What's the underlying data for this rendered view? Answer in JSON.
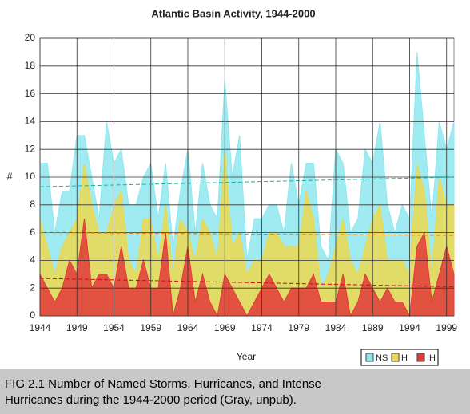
{
  "chart_data": {
    "type": "area",
    "title": "Atlantic Basin Activity, 1944-2000",
    "xlabel": "Year",
    "ylabel": "#",
    "x": [
      1944,
      1945,
      1946,
      1947,
      1948,
      1949,
      1950,
      1951,
      1952,
      1953,
      1954,
      1955,
      1956,
      1957,
      1958,
      1959,
      1960,
      1961,
      1962,
      1963,
      1964,
      1965,
      1966,
      1967,
      1968,
      1969,
      1970,
      1971,
      1972,
      1973,
      1974,
      1975,
      1976,
      1977,
      1978,
      1979,
      1980,
      1981,
      1982,
      1983,
      1984,
      1985,
      1986,
      1987,
      1988,
      1989,
      1990,
      1991,
      1992,
      1993,
      1994,
      1995,
      1996,
      1997,
      1998,
      1999,
      2000
    ],
    "series": [
      {
        "name": "NS",
        "color": "#8ee8ee",
        "trend_color": "#2aa89a",
        "trend": [
          9.3,
          10.0
        ],
        "values": [
          11,
          11,
          6,
          9,
          9,
          13,
          13,
          10,
          7,
          14,
          11,
          12,
          8,
          8,
          10,
          11,
          7,
          11,
          5,
          9,
          12,
          6,
          11,
          8,
          7,
          17,
          10,
          13,
          4,
          7,
          7,
          8,
          8,
          6,
          11,
          8,
          11,
          11,
          5,
          4,
          12,
          11,
          6,
          7,
          12,
          11,
          14,
          8,
          6,
          8,
          7,
          19,
          13,
          7,
          14,
          12,
          14
        ]
      },
      {
        "name": "H",
        "color": "#ecd850",
        "trend_color": "#e07a1a",
        "trend": [
          6.0,
          5.8
        ],
        "values": [
          7,
          5,
          3,
          5,
          6,
          7,
          11,
          8,
          6,
          6,
          8,
          9,
          4,
          3,
          7,
          7,
          4,
          8,
          3,
          7,
          6,
          4,
          7,
          6,
          4,
          12,
          5,
          6,
          3,
          4,
          4,
          6,
          6,
          5,
          5,
          5,
          9,
          7,
          2,
          3,
          5,
          7,
          4,
          3,
          5,
          7,
          8,
          4,
          4,
          4,
          3,
          11,
          9,
          3,
          10,
          8,
          8
        ]
      },
      {
        "name": "IH",
        "color": "#e23a3a",
        "trend_color": "#c01010",
        "trend": [
          2.7,
          2.1
        ],
        "values": [
          3,
          2,
          1,
          2,
          4,
          3,
          7,
          2,
          3,
          3,
          2,
          5,
          2,
          2,
          4,
          2,
          2,
          6,
          0,
          2,
          5,
          1,
          3,
          1,
          0,
          3,
          2,
          1,
          0,
          1,
          2,
          3,
          2,
          1,
          2,
          2,
          2,
          3,
          1,
          1,
          1,
          3,
          0,
          1,
          3,
          2,
          1,
          2,
          1,
          1,
          0,
          5,
          6,
          1,
          3,
          5,
          3
        ]
      }
    ],
    "xlim": [
      1944,
      2000
    ],
    "xticks": [
      1944,
      1949,
      1954,
      1959,
      1964,
      1969,
      1974,
      1979,
      1984,
      1989,
      1994,
      1999
    ],
    "ylim": [
      0,
      20
    ],
    "yticks": [
      0,
      2,
      4,
      6,
      8,
      10,
      12,
      14,
      16,
      18,
      20
    ],
    "grid": true,
    "caption": [
      "FIG 2.1  Number of Named Storms, Hurricanes, and Intense",
      "Hurricanes during the 1944-2000 period (Gray, unpub)."
    ]
  }
}
